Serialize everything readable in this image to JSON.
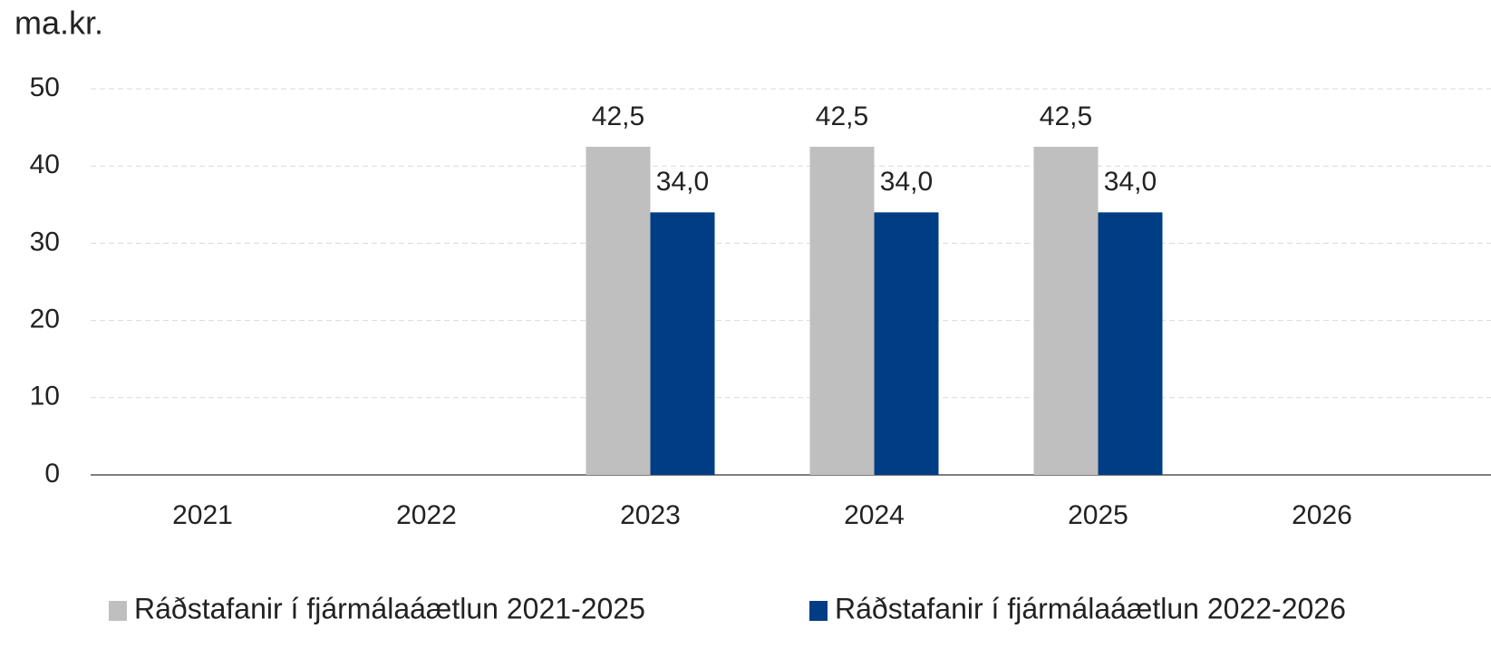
{
  "chart_data": {
    "type": "bar",
    "title": "ma.kr.",
    "categories": [
      "2021",
      "2022",
      "2023",
      "2024",
      "2025",
      "2026"
    ],
    "series": [
      {
        "name": "Ráðstafanir í fjármálaáætlun 2021-2025",
        "color": "#bfbfbf",
        "values": [
          null,
          null,
          42.5,
          42.5,
          42.5,
          null
        ],
        "value_labels": [
          null,
          null,
          "42,5",
          "42,5",
          "42,5",
          null
        ]
      },
      {
        "name": "Ráðstafanir í fjármálaáætlun 2022-2026",
        "color": "#003d85",
        "values": [
          null,
          null,
          34,
          34,
          34,
          null
        ],
        "value_labels": [
          null,
          null,
          "34,0",
          "34,0",
          "34,0",
          null
        ]
      }
    ],
    "ylim": [
      0,
      50
    ],
    "yticks": [
      0,
      10,
      20,
      30,
      40,
      50
    ],
    "grid": true,
    "legend": "bottom"
  }
}
